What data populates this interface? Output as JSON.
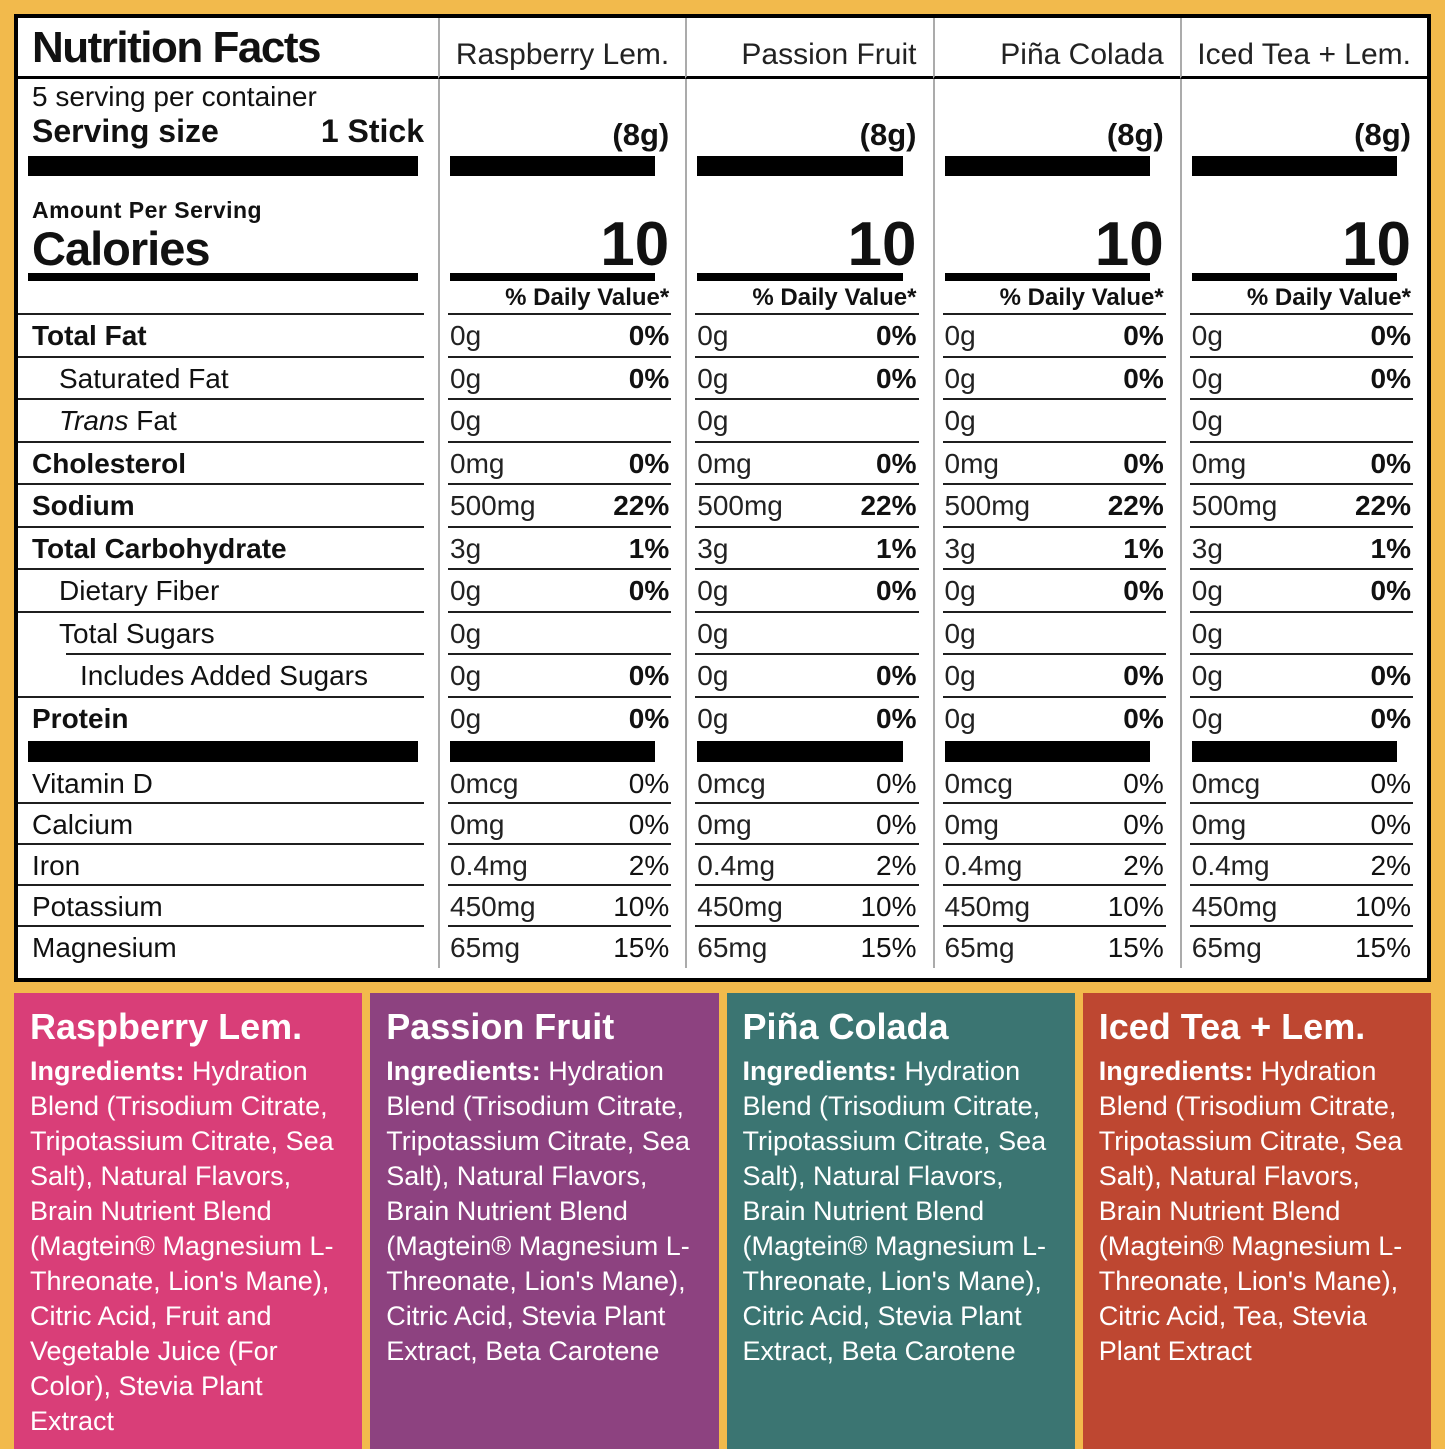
{
  "colors": {
    "border_yellow": "#F2BA4C",
    "divider_gray": "#ABABAB",
    "hairline": "#1F1F1F"
  },
  "label": {
    "title": "Nutrition Facts",
    "servings_per_container": "5 serving per container",
    "serving_size_label": "Serving size",
    "serving_size_value": "1 Stick",
    "amount_per_serving": "Amount Per Serving",
    "calories_label": "Calories",
    "daily_value_header": "% Daily Value*"
  },
  "flavors": [
    {
      "name": "Raspberry Lem.",
      "serving_weight": "(8g)",
      "calories": "10"
    },
    {
      "name": "Passion Fruit",
      "serving_weight": "(8g)",
      "calories": "10"
    },
    {
      "name": "Piña Colada",
      "serving_weight": "(8g)",
      "calories": "10"
    },
    {
      "name": "Iced Tea + Lem.",
      "serving_weight": "(8g)",
      "calories": "10"
    }
  ],
  "nutrient_rows": [
    {
      "label": "Total Fat",
      "bold": true,
      "indent": 0,
      "amounts": [
        "0g",
        "0g",
        "0g",
        "0g"
      ],
      "dvs": [
        "0%",
        "0%",
        "0%",
        "0%"
      ]
    },
    {
      "label": "Saturated Fat",
      "bold": false,
      "indent": 1,
      "amounts": [
        "0g",
        "0g",
        "0g",
        "0g"
      ],
      "dvs": [
        "0%",
        "0%",
        "0%",
        "0%"
      ]
    },
    {
      "label": "Trans Fat",
      "bold": false,
      "indent": 1,
      "italic": "Trans",
      "amounts": [
        "0g",
        "0g",
        "0g",
        "0g"
      ],
      "dvs": [
        "",
        "",
        "",
        ""
      ]
    },
    {
      "label": "Cholesterol",
      "bold": true,
      "indent": 0,
      "amounts": [
        "0mg",
        "0mg",
        "0mg",
        "0mg"
      ],
      "dvs": [
        "0%",
        "0%",
        "0%",
        "0%"
      ]
    },
    {
      "label": "Sodium",
      "bold": true,
      "indent": 0,
      "amounts": [
        "500mg",
        "500mg",
        "500mg",
        "500mg"
      ],
      "dvs": [
        "22%",
        "22%",
        "22%",
        "22%"
      ]
    },
    {
      "label": "Total Carbohydrate",
      "bold": true,
      "indent": 0,
      "amounts": [
        "3g",
        "3g",
        "3g",
        "3g"
      ],
      "dvs": [
        "1%",
        "1%",
        "1%",
        "1%"
      ]
    },
    {
      "label": "Dietary Fiber",
      "bold": false,
      "indent": 1,
      "amounts": [
        "0g",
        "0g",
        "0g",
        "0g"
      ],
      "dvs": [
        "0%",
        "0%",
        "0%",
        "0%"
      ]
    },
    {
      "label": "Total Sugars",
      "bold": false,
      "indent": 1,
      "indent_line": true,
      "amounts": [
        "0g",
        "0g",
        "0g",
        "0g"
      ],
      "dvs": [
        "",
        "",
        "",
        ""
      ]
    },
    {
      "label": "Includes Added Sugars",
      "bold": false,
      "indent": 2,
      "amounts": [
        "0g",
        "0g",
        "0g",
        "0g"
      ],
      "dvs": [
        "0%",
        "0%",
        "0%",
        "0%"
      ]
    },
    {
      "label": "Protein",
      "bold": true,
      "indent": 0,
      "noline": true,
      "amounts": [
        "0g",
        "0g",
        "0g",
        "0g"
      ],
      "dvs": [
        "0%",
        "0%",
        "0%",
        "0%"
      ]
    }
  ],
  "vitamin_rows": [
    {
      "label": "Vitamin D",
      "amounts": [
        "0mcg",
        "0mcg",
        "0mcg",
        "0mcg"
      ],
      "dvs": [
        "0%",
        "0%",
        "0%",
        "0%"
      ]
    },
    {
      "label": "Calcium",
      "amounts": [
        "0mg",
        "0mg",
        "0mg",
        "0mg"
      ],
      "dvs": [
        "0%",
        "0%",
        "0%",
        "0%"
      ]
    },
    {
      "label": "Iron",
      "amounts": [
        "0.4mg",
        "0.4mg",
        "0.4mg",
        "0.4mg"
      ],
      "dvs": [
        "2%",
        "2%",
        "2%",
        "2%"
      ]
    },
    {
      "label": "Potassium",
      "amounts": [
        "450mg",
        "450mg",
        "450mg",
        "450mg"
      ],
      "dvs": [
        "10%",
        "10%",
        "10%",
        "10%"
      ]
    },
    {
      "label": "Magnesium",
      "amounts": [
        "65mg",
        "65mg",
        "65mg",
        "65mg"
      ],
      "dvs": [
        "15%",
        "15%",
        "15%",
        "15%"
      ]
    }
  ],
  "ingredient_panels": [
    {
      "title": "Raspberry Lem.",
      "ingredients_label": "Ingredients:",
      "ingredients_text": "Hydration Blend (Trisodium Citrate, Tripotassium Citrate, Sea Salt), Natural Flavors, Brain Nutrient Blend (Magtein® Magnesium L-Threonate, Lion's Mane), Citric Acid, Fruit and Vegetable Juice (For Color), Stevia Plant Extract",
      "color": "#D93E78"
    },
    {
      "title": "Passion Fruit",
      "ingredients_label": "Ingredients:",
      "ingredients_text": "Hydration Blend (Trisodium Citrate, Tripotassium Citrate, Sea Salt), Natural Flavors, Brain Nutrient Blend (Magtein® Magnesium L-Threonate, Lion's Mane), Citric Acid, Stevia Plant Extract, Beta Carotene",
      "color": "#8D4280"
    },
    {
      "title": "Piña Colada",
      "ingredients_label": "Ingredients:",
      "ingredients_text": "Hydration Blend (Trisodium Citrate, Tripotassium Citrate, Sea Salt), Natural Flavors, Brain Nutrient Blend (Magtein® Magnesium L-Threonate, Lion's Mane), Citric Acid, Stevia Plant Extract, Beta Carotene",
      "color": "#3B7572"
    },
    {
      "title": "Iced Tea + Lem.",
      "ingredients_label": "Ingredients:",
      "ingredients_text": "Hydration Blend (Trisodium Citrate, Tripotassium Citrate, Sea Salt), Natural Flavors, Brain Nutrient Blend (Magtein® Magnesium L-Threonate, Lion's Mane), Citric Acid, Tea, Stevia Plant Extract",
      "color": "#BE4731"
    }
  ]
}
